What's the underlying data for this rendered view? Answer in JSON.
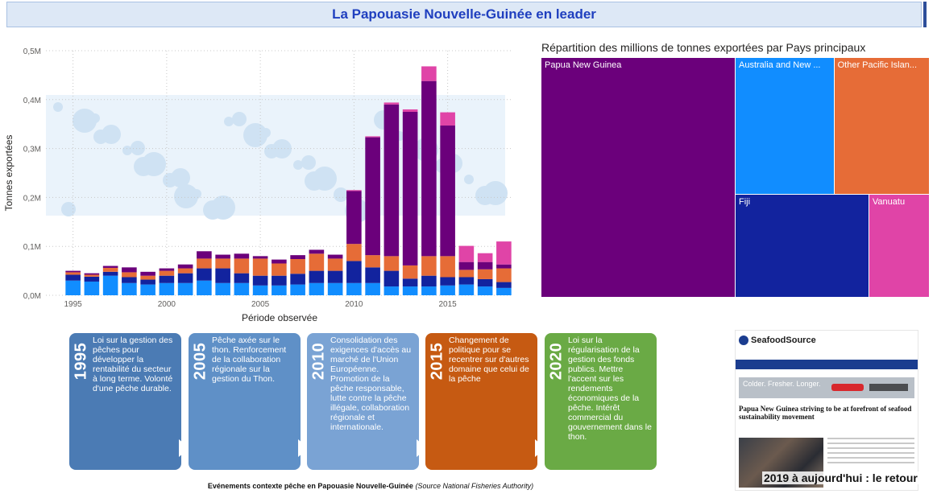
{
  "header": {
    "title": "La Papouasie Nouvelle-Guinée en leader"
  },
  "chart_data": [
    {
      "type": "bar",
      "stacked": true,
      "title": "",
      "xlabel": "Période observée",
      "ylabel": "Tonnes exportées",
      "ylim": [
        0,
        0.5
      ],
      "yunit": "M",
      "yticks": [
        "0,0M",
        "0,1M",
        "0,2M",
        "0,3M",
        "0,4M",
        "0,5M"
      ],
      "xticks": [
        "1995",
        "2000",
        "2005",
        "2010",
        "2015"
      ],
      "grid": true,
      "x": [
        1995,
        1996,
        1997,
        1998,
        1999,
        2000,
        2001,
        2002,
        2003,
        2004,
        2005,
        2006,
        2007,
        2008,
        2009,
        2010,
        2011,
        2012,
        2013,
        2014,
        2015,
        2016,
        2017,
        2018
      ],
      "series": [
        {
          "color": "#118dff",
          "values": [
            0.03,
            0.028,
            0.04,
            0.025,
            0.022,
            0.025,
            0.025,
            0.03,
            0.025,
            0.025,
            0.02,
            0.02,
            0.022,
            0.025,
            0.025,
            0.025,
            0.025,
            0.018,
            0.018,
            0.018,
            0.02,
            0.022,
            0.018,
            0.015
          ]
        },
        {
          "color": "#12239e",
          "values": [
            0.012,
            0.01,
            0.008,
            0.012,
            0.01,
            0.015,
            0.02,
            0.025,
            0.03,
            0.02,
            0.02,
            0.02,
            0.022,
            0.025,
            0.025,
            0.045,
            0.032,
            0.032,
            0.016,
            0.022,
            0.017,
            0.015,
            0.015,
            0.012
          ]
        },
        {
          "color": "#e66c37",
          "values": [
            0.005,
            0.004,
            0.008,
            0.01,
            0.008,
            0.01,
            0.01,
            0.02,
            0.02,
            0.03,
            0.035,
            0.025,
            0.03,
            0.035,
            0.025,
            0.035,
            0.025,
            0.03,
            0.027,
            0.04,
            0.043,
            0.015,
            0.02,
            0.028
          ]
        },
        {
          "color": "#6b007b",
          "values": [
            0.003,
            0.003,
            0.004,
            0.01,
            0.008,
            0.005,
            0.008,
            0.015,
            0.008,
            0.01,
            0.005,
            0.008,
            0.008,
            0.008,
            0.008,
            0.108,
            0.241,
            0.31,
            0.314,
            0.358,
            0.267,
            0.016,
            0.015,
            0.008
          ]
        },
        {
          "color": "#e044a7",
          "values": [
            0.0,
            0.0,
            0.0,
            0.0,
            0.0,
            0.0,
            0.0,
            0.0,
            0.0,
            0.0,
            0.0,
            0.0,
            0.0,
            0.0,
            0.0,
            0.002,
            0.002,
            0.004,
            0.005,
            0.03,
            0.027,
            0.033,
            0.018,
            0.047
          ]
        }
      ]
    },
    {
      "type": "treemap",
      "title": "Répartition des millions de tonnes exportées par Pays principaux",
      "items": [
        {
          "label": "Papua New Guinea",
          "value": 50,
          "color": "#6b007b"
        },
        {
          "label": "Australia and New ...",
          "value": 14.5,
          "color": "#118dff"
        },
        {
          "label": "Other Pacific Islan...",
          "value": 14,
          "color": "#e66c37"
        },
        {
          "label": "Fiji",
          "value": 14.8,
          "color": "#12239e"
        },
        {
          "label": "Vanuatu",
          "value": 6.7,
          "color": "#e044a7"
        }
      ]
    }
  ],
  "timeline": {
    "events": [
      {
        "year": "1995",
        "text": "Loi sur la gestion des pêches pour développer la rentabilité du secteur à long terme. Volonté d'une pêche durable.",
        "color": "#4b7bb4"
      },
      {
        "year": "2005",
        "text": "Pêche axée sur le thon. Renforcement de la collaboration régionale sur la gestion du Thon.",
        "color": "#5f90c7"
      },
      {
        "year": "2010",
        "text": "Consolidation des exigences d'accès au marché de l'Union Européenne. Promotion de la pêche responsable, lutte contre la pêche illégale, collaboration régionale et internationale.",
        "color": "#7aa3d4"
      },
      {
        "year": "2015",
        "text": "Changement de politique pour se recentrer sur d'autres domaine que celui de la pêche",
        "color": "#c65a12"
      },
      {
        "year": "2020",
        "text": "Loi sur la régularisation de la gestion des fonds publics. Mettre l'accent sur les rendements économiques de la pêche. Intérêt commercial du gouvernement dans le thon.",
        "color": "#6aaa45"
      }
    ],
    "caption_bold": "Evénements contexte pêche en Papouasie Nouvelle-Guinée",
    "caption_italic": "(Source National Fisheries Authority)"
  },
  "article": {
    "brand": "SeafoodSource",
    "ad_text": "Colder. Fresher. Longer.",
    "headline": "Papua New Guinea striving to be at forefront of seafood sustainability movement",
    "overlay": "2019 à aujourd'hui : le retour"
  }
}
